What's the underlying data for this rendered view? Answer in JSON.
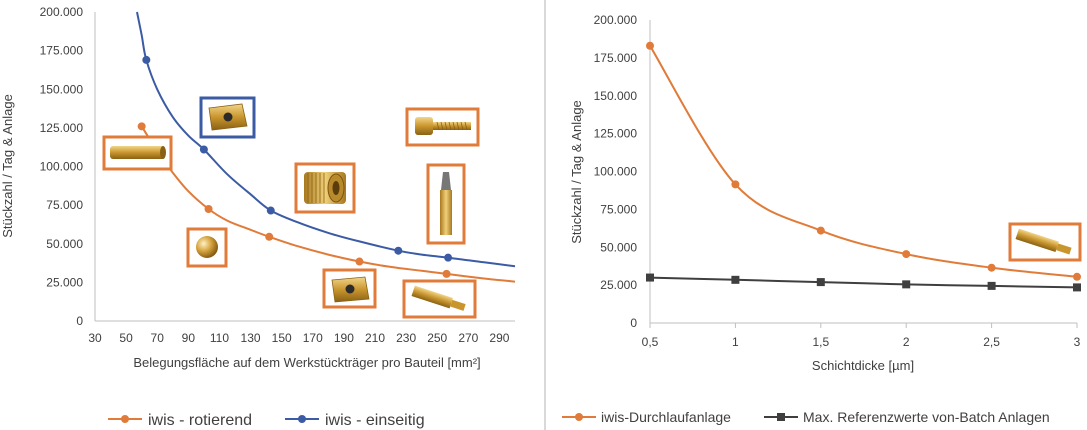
{
  "colors": {
    "orange": "#E07B39",
    "blue": "#3B5BA5",
    "gray": "#3F3F3F",
    "axis": "#BFBFBF"
  },
  "chart_data": [
    {
      "type": "line",
      "xlabel": "Belegungsfläche auf dem Werkstückträger pro Bauteil [mm²]",
      "ylabel": "Stückzahl / Tag & Anlage",
      "xlim": [
        30,
        300
      ],
      "ylim": [
        0,
        200000
      ],
      "x_ticks": [
        "30",
        "50",
        "70",
        "90",
        "110",
        "130",
        "150",
        "170",
        "190",
        "210",
        "230",
        "250",
        "270",
        "290"
      ],
      "y_ticks": [
        "0",
        "25.000",
        "50.000",
        "75.000",
        "100.000",
        "125.000",
        "150.000",
        "175.000",
        "200.000"
      ],
      "grid": false,
      "legend_position": "bottom",
      "series": [
        {
          "name": "iwis - rotierend",
          "color": "orange",
          "points": [
            [
              60,
              126000
            ],
            [
              103,
              72500
            ],
            [
              142,
              54500
            ],
            [
              200,
              38500
            ],
            [
              256,
              30500
            ]
          ],
          "curve": [
            [
              60,
              126000
            ],
            [
              70,
              110000
            ],
            [
              80,
              96000
            ],
            [
              90,
              84000
            ],
            [
              103,
              72500
            ],
            [
              115,
              65000
            ],
            [
              130,
              59000
            ],
            [
              142,
              54500
            ],
            [
              160,
              48500
            ],
            [
              180,
              43000
            ],
            [
              200,
              38500
            ],
            [
              220,
              35000
            ],
            [
              240,
              32500
            ],
            [
              256,
              30500
            ],
            [
              280,
              27500
            ],
            [
              300,
              25500
            ]
          ]
        },
        {
          "name": "iwis - einseitig",
          "color": "blue",
          "points": [
            [
              63,
              169000
            ],
            [
              100,
              111000
            ],
            [
              143,
              71500
            ],
            [
              225,
              45500
            ],
            [
              257,
              41000
            ]
          ],
          "curve": [
            [
              57,
              200000
            ],
            [
              60,
              185000
            ],
            [
              63,
              169000
            ],
            [
              70,
              150000
            ],
            [
              80,
              132000
            ],
            [
              90,
              120000
            ],
            [
              100,
              111000
            ],
            [
              115,
              95000
            ],
            [
              130,
              82000
            ],
            [
              143,
              71500
            ],
            [
              160,
              64000
            ],
            [
              180,
              57000
            ],
            [
              200,
              51500
            ],
            [
              225,
              45500
            ],
            [
              240,
              43000
            ],
            [
              257,
              41000
            ],
            [
              280,
              38000
            ],
            [
              300,
              35500
            ]
          ]
        }
      ]
    },
    {
      "type": "line",
      "xlabel": "Schichtdicke [µm]",
      "ylabel": "Stückzahl / Tag & Anlage",
      "xlim": [
        0.5,
        3
      ],
      "ylim": [
        0,
        200000
      ],
      "x_ticks": [
        "0,5",
        "1",
        "1,5",
        "2",
        "2,5",
        "3"
      ],
      "y_ticks": [
        "0",
        "25.000",
        "50.000",
        "75.000",
        "100.000",
        "125.000",
        "150.000",
        "175.000",
        "200.000"
      ],
      "grid": false,
      "legend_position": "bottom",
      "series": [
        {
          "name": "iwis-Durchlaufanlage",
          "color": "orange",
          "marker": "circle",
          "x": [
            0.5,
            1,
            1.5,
            2,
            2.5,
            3
          ],
          "y": [
            183000,
            91500,
            61000,
            45500,
            36500,
            30500
          ]
        },
        {
          "name": "Max. Referenzwerte von-Batch Anlagen",
          "color": "gray",
          "marker": "square",
          "x": [
            0.5,
            1,
            1.5,
            2,
            2.5,
            3
          ],
          "y": [
            30000,
            28500,
            27000,
            25500,
            24500,
            23500
          ]
        }
      ]
    }
  ],
  "images": [
    {
      "name": "rohrhuelse-photo",
      "label_icon": "sleeve-part"
    },
    {
      "name": "wendeplatte-photo-blue",
      "label_icon": "insert-part"
    },
    {
      "name": "kugel-photo",
      "label_icon": "ball-part"
    },
    {
      "name": "raendelmutter-photo",
      "label_icon": "knurled-nut-part"
    },
    {
      "name": "wendeplatte-photo-orange",
      "label_icon": "insert-part"
    },
    {
      "name": "schraube-photo",
      "label_icon": "screw-part"
    },
    {
      "name": "bit-photo",
      "label_icon": "bit-part"
    },
    {
      "name": "sechskant-bit-photo",
      "label_icon": "hex-bit-part"
    },
    {
      "name": "sechskant-bit-photo-right",
      "label_icon": "hex-bit-part"
    }
  ]
}
